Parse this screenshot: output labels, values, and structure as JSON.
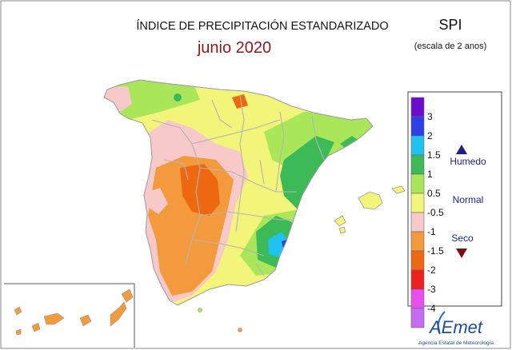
{
  "header": {
    "title": "ÍNDICE DE PRECIPITACIÓN ESTANDARIZADO",
    "period": "junio 2020",
    "index": "SPI",
    "scale": "(escala de 2 anos)"
  },
  "legend": {
    "levels": [
      {
        "label": "3",
        "color": "#6a0dcf"
      },
      {
        "label": "2",
        "color": "#2f3fe8"
      },
      {
        "label": "1.5",
        "color": "#1ec4ef"
      },
      {
        "label": "1",
        "color": "#3dba58"
      },
      {
        "label": "0.5",
        "color": "#a9e65a"
      },
      {
        "label": "-0.5",
        "color": "#f2f57a"
      },
      {
        "label": "-1",
        "color": "#f7c9c9"
      },
      {
        "label": "-1.5",
        "color": "#f39a3c"
      },
      {
        "label": "-2",
        "color": "#ee6812"
      },
      {
        "label": "-3",
        "color": "#ef1f1f"
      },
      {
        "label": "-4",
        "color": "#e850ee"
      },
      {
        "label": "",
        "color": "#c56cf0"
      }
    ],
    "categories": {
      "wet": "Humedo",
      "normal": "Normal",
      "dry": "Seco"
    },
    "wet_color": "#1c1f8a",
    "dry_color": "#7a1010"
  },
  "logo": {
    "name": "AEmet",
    "tagline": "Agencia Estatal de Meteorología"
  }
}
